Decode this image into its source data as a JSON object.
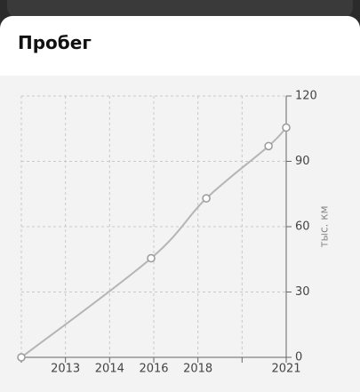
{
  "header": {
    "title": "Пробег"
  },
  "chart_data": {
    "type": "line",
    "y_axis_label": "тыс. км",
    "x": [
      0,
      2.94,
      4.19,
      5.6,
      6
    ],
    "series": [
      {
        "color": "#b5b5b5",
        "values": [
          0,
          45.5,
          73,
          97,
          105.5
        ]
      }
    ],
    "xlim": [
      0,
      6
    ],
    "xticks": [
      {
        "value": 0,
        "label": null
      },
      {
        "value": 1,
        "label": "2013"
      },
      {
        "value": 2,
        "label": "2014"
      },
      {
        "value": 3,
        "label": "2016"
      },
      {
        "value": 4,
        "label": "2018"
      },
      {
        "value": 5,
        "label": null
      },
      {
        "value": 6,
        "label": "2021"
      }
    ],
    "ylim": [
      0,
      120
    ],
    "yticks": [
      0,
      30,
      60,
      90,
      120
    ],
    "grid": true
  }
}
